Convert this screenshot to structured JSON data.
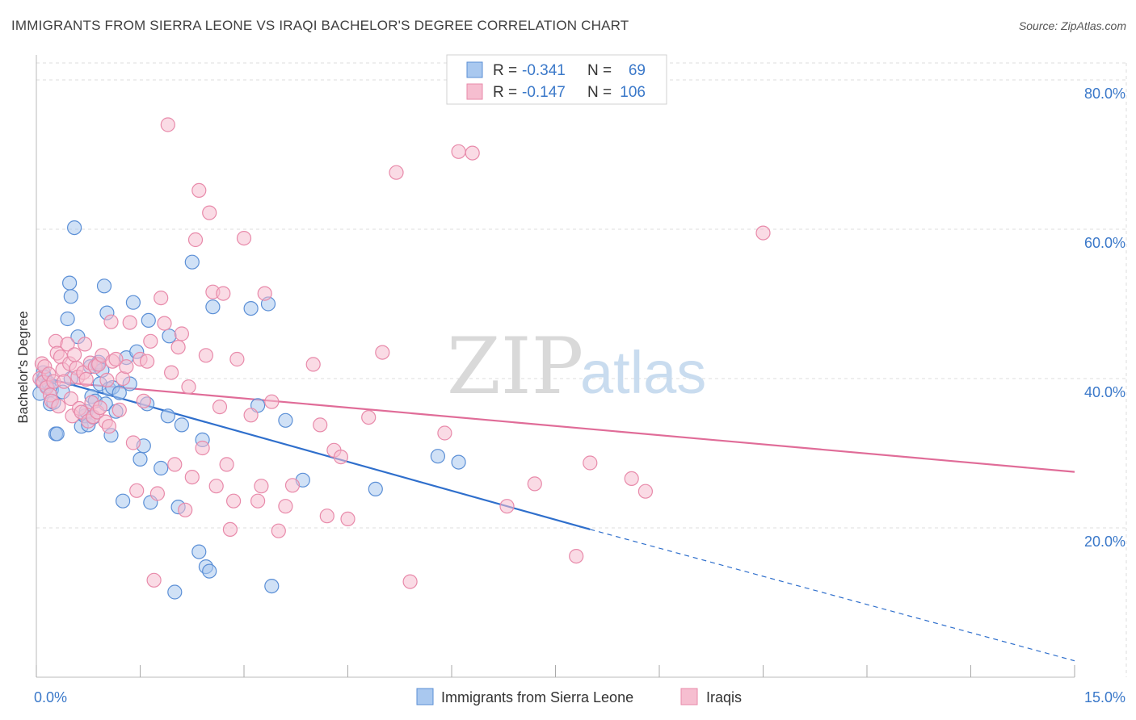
{
  "title": "IMMIGRANTS FROM SIERRA LEONE VS IRAQI BACHELOR'S DEGREE CORRELATION CHART",
  "source": "Source: ZipAtlas.com",
  "watermark": {
    "zip": "ZIP",
    "atlas": "atlas"
  },
  "colors": {
    "blue_fill": "#a9c8ef",
    "blue_stroke": "#5b8fd6",
    "blue_line": "#2f6fcc",
    "pink_fill": "#f6bed0",
    "pink_stroke": "#e88aaa",
    "pink_line": "#e06c98",
    "tick_text": "#3a78c9",
    "grid": "#dcdcdc"
  },
  "legend": {
    "rows": [
      {
        "r_label": "R = ",
        "r_value": "-0.341",
        "n_label": "N = ",
        "n_value": "69"
      },
      {
        "r_label": "R = ",
        "r_value": "-0.147",
        "n_label": "N = ",
        "n_value": "106"
      }
    ]
  },
  "chart_data": {
    "type": "scatter",
    "title": "IMMIGRANTS FROM SIERRA LEONE VS IRAQI BACHELOR'S DEGREE CORRELATION CHART",
    "xlabel": "",
    "ylabel": "Bachelor's Degree",
    "xlim": [
      0,
      15
    ],
    "ylim": [
      0,
      84
    ],
    "x_tick_labels": [
      {
        "value": 0,
        "label": "0.0%"
      },
      {
        "value": 15,
        "label": "15.0%"
      }
    ],
    "y_tick_labels": [
      {
        "value": 20,
        "label": "20.0%"
      },
      {
        "value": 40,
        "label": "40.0%"
      },
      {
        "value": 60,
        "label": "60.0%"
      },
      {
        "value": 80,
        "label": "80.0%"
      }
    ],
    "x_minor_ticks": [
      1.5,
      3,
      4.5,
      6,
      7.5,
      9,
      10.5,
      12,
      13.5
    ],
    "grid": true,
    "legend_position": "top-center",
    "series": [
      {
        "name": "Immigrants from Sierra Leone",
        "color": "blue",
        "r": -0.341,
        "n": 69,
        "trend": {
          "x": [
            0,
            8
          ],
          "y": [
            40.5,
            19.8
          ],
          "dashed_to": [
            15,
            2.2
          ]
        },
        "points": [
          [
            0.05,
            38.0
          ],
          [
            0.08,
            39.6
          ],
          [
            0.1,
            40.8
          ],
          [
            0.12,
            40.2
          ],
          [
            0.15,
            39.0
          ],
          [
            0.18,
            39.4
          ],
          [
            0.2,
            36.6
          ],
          [
            0.22,
            38.5
          ],
          [
            0.25,
            36.8
          ],
          [
            0.28,
            32.6
          ],
          [
            0.3,
            32.6
          ],
          [
            0.38,
            38.2
          ],
          [
            0.45,
            48.0
          ],
          [
            0.48,
            52.8
          ],
          [
            0.5,
            51.0
          ],
          [
            0.55,
            60.2
          ],
          [
            0.6,
            45.6
          ],
          [
            0.65,
            33.6
          ],
          [
            0.7,
            35.0
          ],
          [
            0.72,
            35.6
          ],
          [
            0.75,
            33.8
          ],
          [
            0.78,
            41.6
          ],
          [
            0.8,
            37.6
          ],
          [
            0.82,
            34.8
          ],
          [
            0.85,
            37.0
          ],
          [
            0.88,
            41.9
          ],
          [
            0.9,
            42.2
          ],
          [
            0.92,
            39.3
          ],
          [
            0.95,
            41.1
          ],
          [
            0.98,
            52.4
          ],
          [
            1.0,
            36.6
          ],
          [
            1.02,
            48.8
          ],
          [
            1.05,
            38.6
          ],
          [
            1.08,
            32.4
          ],
          [
            1.1,
            38.8
          ],
          [
            1.15,
            35.6
          ],
          [
            1.2,
            38.1
          ],
          [
            1.25,
            23.6
          ],
          [
            1.3,
            42.8
          ],
          [
            1.35,
            39.3
          ],
          [
            1.4,
            50.2
          ],
          [
            1.45,
            43.6
          ],
          [
            1.5,
            29.2
          ],
          [
            1.55,
            31.0
          ],
          [
            1.6,
            36.6
          ],
          [
            1.62,
            47.8
          ],
          [
            1.65,
            23.4
          ],
          [
            1.8,
            28.0
          ],
          [
            1.9,
            35.0
          ],
          [
            1.92,
            45.7
          ],
          [
            2.0,
            11.4
          ],
          [
            2.05,
            22.8
          ],
          [
            2.1,
            33.8
          ],
          [
            2.25,
            55.6
          ],
          [
            2.35,
            16.8
          ],
          [
            2.4,
            31.8
          ],
          [
            2.45,
            14.8
          ],
          [
            2.5,
            14.2
          ],
          [
            2.55,
            49.6
          ],
          [
            3.1,
            49.4
          ],
          [
            3.2,
            36.4
          ],
          [
            3.35,
            50.0
          ],
          [
            3.4,
            12.2
          ],
          [
            3.6,
            34.4
          ],
          [
            3.85,
            26.4
          ],
          [
            4.9,
            25.2
          ],
          [
            5.8,
            29.6
          ],
          [
            6.1,
            28.8
          ],
          [
            0.5,
            40.0
          ]
        ]
      },
      {
        "name": "Iraqis",
        "color": "pink",
        "r": -0.147,
        "n": 106,
        "trend": {
          "x": [
            0,
            15
          ],
          "y": [
            39.8,
            27.5
          ]
        },
        "points": [
          [
            0.05,
            40.0
          ],
          [
            0.08,
            42.0
          ],
          [
            0.1,
            39.5
          ],
          [
            0.12,
            41.6
          ],
          [
            0.15,
            38.8
          ],
          [
            0.18,
            40.6
          ],
          [
            0.2,
            37.8
          ],
          [
            0.22,
            37.0
          ],
          [
            0.25,
            39.6
          ],
          [
            0.28,
            45.0
          ],
          [
            0.3,
            43.4
          ],
          [
            0.32,
            36.3
          ],
          [
            0.35,
            42.9
          ],
          [
            0.38,
            41.2
          ],
          [
            0.4,
            39.6
          ],
          [
            0.45,
            44.6
          ],
          [
            0.48,
            42.0
          ],
          [
            0.5,
            37.3
          ],
          [
            0.52,
            35.0
          ],
          [
            0.55,
            43.2
          ],
          [
            0.58,
            41.4
          ],
          [
            0.6,
            40.2
          ],
          [
            0.62,
            36.0
          ],
          [
            0.65,
            35.5
          ],
          [
            0.68,
            40.8
          ],
          [
            0.7,
            44.6
          ],
          [
            0.72,
            39.9
          ],
          [
            0.75,
            34.3
          ],
          [
            0.78,
            42.1
          ],
          [
            0.8,
            36.8
          ],
          [
            0.82,
            34.9
          ],
          [
            0.85,
            41.6
          ],
          [
            0.88,
            35.5
          ],
          [
            0.9,
            41.9
          ],
          [
            0.92,
            36.1
          ],
          [
            0.95,
            43.1
          ],
          [
            1.0,
            34.2
          ],
          [
            1.02,
            39.8
          ],
          [
            1.05,
            33.6
          ],
          [
            1.08,
            47.6
          ],
          [
            1.1,
            42.3
          ],
          [
            1.15,
            42.6
          ],
          [
            1.2,
            35.8
          ],
          [
            1.25,
            40.0
          ],
          [
            1.3,
            41.6
          ],
          [
            1.35,
            47.5
          ],
          [
            1.4,
            31.4
          ],
          [
            1.45,
            25.0
          ],
          [
            1.5,
            42.6
          ],
          [
            1.55,
            37.0
          ],
          [
            1.6,
            42.3
          ],
          [
            1.65,
            45.0
          ],
          [
            1.7,
            13.0
          ],
          [
            1.75,
            24.6
          ],
          [
            1.8,
            50.8
          ],
          [
            1.85,
            47.4
          ],
          [
            1.9,
            74.0
          ],
          [
            1.95,
            40.8
          ],
          [
            2.0,
            28.5
          ],
          [
            2.05,
            44.2
          ],
          [
            2.1,
            46.0
          ],
          [
            2.15,
            22.4
          ],
          [
            2.2,
            38.9
          ],
          [
            2.25,
            26.8
          ],
          [
            2.3,
            58.6
          ],
          [
            2.35,
            65.2
          ],
          [
            2.4,
            30.7
          ],
          [
            2.45,
            43.1
          ],
          [
            2.5,
            62.2
          ],
          [
            2.55,
            51.6
          ],
          [
            2.6,
            25.6
          ],
          [
            2.65,
            36.2
          ],
          [
            2.7,
            51.4
          ],
          [
            2.75,
            28.5
          ],
          [
            2.8,
            19.8
          ],
          [
            2.85,
            23.6
          ],
          [
            2.9,
            42.6
          ],
          [
            3.0,
            58.8
          ],
          [
            3.1,
            35.1
          ],
          [
            3.2,
            23.6
          ],
          [
            3.25,
            25.6
          ],
          [
            3.3,
            51.4
          ],
          [
            3.4,
            36.9
          ],
          [
            3.5,
            19.6
          ],
          [
            3.6,
            22.9
          ],
          [
            3.7,
            25.7
          ],
          [
            4.0,
            41.9
          ],
          [
            4.1,
            33.8
          ],
          [
            4.2,
            21.6
          ],
          [
            4.3,
            30.4
          ],
          [
            4.4,
            29.5
          ],
          [
            4.5,
            21.2
          ],
          [
            4.8,
            34.8
          ],
          [
            5.0,
            43.5
          ],
          [
            5.2,
            67.6
          ],
          [
            5.4,
            12.8
          ],
          [
            5.9,
            32.7
          ],
          [
            6.1,
            70.4
          ],
          [
            6.3,
            70.2
          ],
          [
            6.8,
            22.9
          ],
          [
            7.2,
            25.9
          ],
          [
            7.8,
            16.2
          ],
          [
            8.0,
            28.7
          ],
          [
            8.6,
            26.6
          ],
          [
            8.8,
            24.9
          ],
          [
            10.5,
            59.5
          ]
        ]
      }
    ]
  },
  "bottom_legend": {
    "items": [
      {
        "label": "Immigrants from Sierra Leone"
      },
      {
        "label": "Iraqis"
      }
    ]
  }
}
